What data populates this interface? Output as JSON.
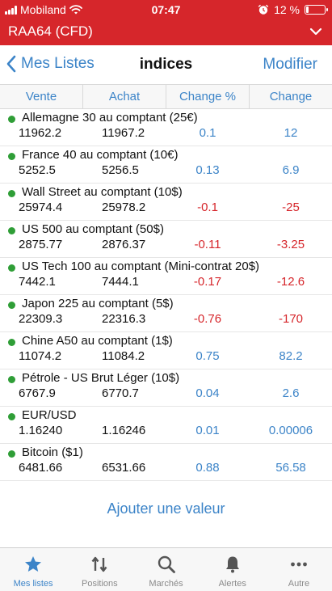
{
  "status": {
    "carrier": "Mobiland",
    "time": "07:47",
    "battery_text": "12 %",
    "battery_level": 0.12
  },
  "account": {
    "name": "RAA64 (CFD)"
  },
  "nav": {
    "back_label": "Mes Listes",
    "title": "indices",
    "edit_label": "Modifier"
  },
  "columns": [
    "Vente",
    "Achat",
    "Change %",
    "Change"
  ],
  "instruments": [
    {
      "name": "Allemagne 30 au comptant (25€)",
      "sell": "11962.2",
      "buy": "11967.2",
      "change_pct": "0.1",
      "change": "12",
      "direction": "up"
    },
    {
      "name": "France 40 au comptant (10€)",
      "sell": "5252.5",
      "buy": "5256.5",
      "change_pct": "0.13",
      "change": "6.9",
      "direction": "up"
    },
    {
      "name": "Wall Street au comptant (10$)",
      "sell": "25974.4",
      "buy": "25978.2",
      "change_pct": "-0.1",
      "change": "-25",
      "direction": "down"
    },
    {
      "name": "US 500 au comptant (50$)",
      "sell": "2875.77",
      "buy": "2876.37",
      "change_pct": "-0.11",
      "change": "-3.25",
      "direction": "down"
    },
    {
      "name": "US Tech 100 au comptant (Mini-contrat 20$)",
      "sell": "7442.1",
      "buy": "7444.1",
      "change_pct": "-0.17",
      "change": "-12.6",
      "direction": "down"
    },
    {
      "name": "Japon 225 au comptant (5$)",
      "sell": "22309.3",
      "buy": "22316.3",
      "change_pct": "-0.76",
      "change": "-170",
      "direction": "down"
    },
    {
      "name": "Chine A50 au comptant (1$)",
      "sell": "11074.2",
      "buy": "11084.2",
      "change_pct": "0.75",
      "change": "82.2",
      "direction": "up"
    },
    {
      "name": "Pétrole - US Brut Léger (10$)",
      "sell": "6767.9",
      "buy": "6770.7",
      "change_pct": "0.04",
      "change": "2.6",
      "direction": "up"
    },
    {
      "name": "EUR/USD",
      "sell": "1.16240",
      "buy": "1.16246",
      "change_pct": "0.01",
      "change": "0.00006",
      "direction": "up"
    },
    {
      "name": "Bitcoin ($1)",
      "sell": "6481.66",
      "buy": "6531.66",
      "change_pct": "0.88",
      "change": "56.58",
      "direction": "up"
    }
  ],
  "add_label": "Ajouter une valeur",
  "tabs": [
    {
      "label": "Mes listes",
      "icon": "star-icon",
      "active": true
    },
    {
      "label": "Positions",
      "icon": "positions-arrows-icon",
      "active": false
    },
    {
      "label": "Marchés",
      "icon": "search-icon",
      "active": false
    },
    {
      "label": "Alertes",
      "icon": "bell-icon",
      "active": false
    },
    {
      "label": "Autre",
      "icon": "more-dots-icon",
      "active": false
    }
  ],
  "colors": {
    "brand_red": "#d6262b",
    "link_blue": "#3c84c8",
    "positive": "#3c84c8",
    "negative": "#d6262b",
    "market_open_dot": "#2f9e37"
  }
}
